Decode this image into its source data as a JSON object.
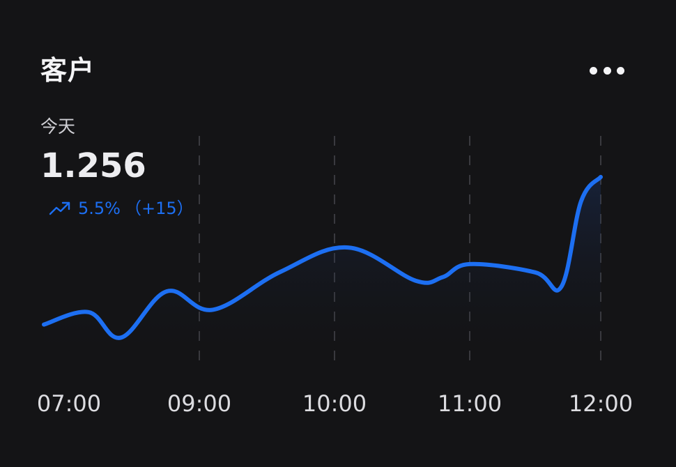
{
  "card": {
    "title": "客户",
    "period_label": "今天",
    "value": "1.256",
    "change_percent": "5.5%",
    "change_delta": "（+15）",
    "accent_color": "#1d6ff2",
    "icons": {
      "menu": "more-horizontal-icon",
      "trend": "trending-up-icon"
    }
  },
  "chart_data": {
    "type": "area",
    "x_ticks": [
      "07:00",
      "09:00",
      "10:00",
      "11:00",
      "12:00"
    ],
    "x_tick_hours": [
      7,
      9,
      10,
      11,
      12
    ],
    "x_range": [
      7,
      12
    ],
    "x": [
      7,
      7.3,
      7.8,
      8.5,
      9.1,
      9.6,
      10.1,
      10.6,
      10.8,
      11.0,
      11.5,
      11.7,
      11.85,
      12
    ],
    "values": [
      64,
      85,
      42,
      120,
      89,
      153,
      194,
      138,
      144,
      166,
      152,
      128,
      272,
      313
    ],
    "series_color": "#1d6ff2",
    "grid": "vertical-dashed",
    "y_axis_visible": false
  }
}
